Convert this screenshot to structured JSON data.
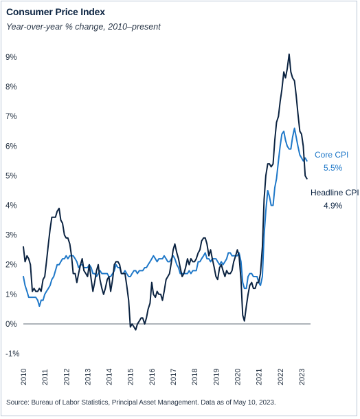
{
  "title": "Consumer Price Index",
  "subtitle": "Year-over-year % change, 2010–present",
  "source": "Source: Bureau of Labor Statistics, Principal Asset Management. Data as of May 10, 2023.",
  "colors": {
    "headline": "#0b2341",
    "core": "#1f78c8",
    "zero_line": "#5a6470"
  },
  "chart_data": {
    "type": "line",
    "title": "Consumer Price Index",
    "subtitle": "Year-over-year % change, 2010–present",
    "xlabel": "",
    "ylabel": "",
    "ylim": [
      -1,
      9
    ],
    "xlim": [
      2010,
      2023.42
    ],
    "yticks": [
      "-1%",
      "0%",
      "1%",
      "2%",
      "3%",
      "4%",
      "5%",
      "6%",
      "7%",
      "8%",
      "9%"
    ],
    "yticks_values": [
      -1,
      0,
      1,
      2,
      3,
      4,
      5,
      6,
      7,
      8,
      9
    ],
    "xticks": [
      "2010",
      "2011",
      "2012",
      "2013",
      "2014",
      "2015",
      "2016",
      "2017",
      "2018",
      "2019",
      "2020",
      "2021",
      "2022",
      "2023"
    ],
    "xticks_values": [
      2010,
      2011,
      2012,
      2013,
      2014,
      2015,
      2016,
      2017,
      2018,
      2019,
      2020,
      2021,
      2022,
      2023
    ],
    "grid": false,
    "series": [
      {
        "name": "Headline CPI",
        "last_label": "4.9%",
        "x": [
          2010.0,
          2010.08,
          2010.17,
          2010.25,
          2010.33,
          2010.42,
          2010.5,
          2010.58,
          2010.67,
          2010.75,
          2010.83,
          2010.92,
          2011.0,
          2011.08,
          2011.17,
          2011.25,
          2011.33,
          2011.42,
          2011.5,
          2011.58,
          2011.67,
          2011.75,
          2011.83,
          2011.92,
          2012.0,
          2012.08,
          2012.17,
          2012.25,
          2012.33,
          2012.42,
          2012.5,
          2012.58,
          2012.67,
          2012.75,
          2012.83,
          2012.92,
          2013.0,
          2013.08,
          2013.17,
          2013.25,
          2013.33,
          2013.42,
          2013.5,
          2013.58,
          2013.67,
          2013.75,
          2013.83,
          2013.92,
          2014.0,
          2014.08,
          2014.17,
          2014.25,
          2014.33,
          2014.42,
          2014.5,
          2014.58,
          2014.67,
          2014.75,
          2014.83,
          2014.92,
          2015.0,
          2015.08,
          2015.17,
          2015.25,
          2015.33,
          2015.42,
          2015.5,
          2015.58,
          2015.67,
          2015.75,
          2015.83,
          2015.92,
          2016.0,
          2016.08,
          2016.17,
          2016.25,
          2016.33,
          2016.42,
          2016.5,
          2016.58,
          2016.67,
          2016.75,
          2016.83,
          2016.92,
          2017.0,
          2017.08,
          2017.17,
          2017.25,
          2017.33,
          2017.42,
          2017.5,
          2017.58,
          2017.67,
          2017.75,
          2017.83,
          2017.92,
          2018.0,
          2018.08,
          2018.17,
          2018.25,
          2018.33,
          2018.42,
          2018.5,
          2018.58,
          2018.67,
          2018.75,
          2018.83,
          2018.92,
          2019.0,
          2019.08,
          2019.17,
          2019.25,
          2019.33,
          2019.42,
          2019.5,
          2019.58,
          2019.67,
          2019.75,
          2019.83,
          2019.92,
          2020.0,
          2020.08,
          2020.17,
          2020.25,
          2020.33,
          2020.42,
          2020.5,
          2020.58,
          2020.67,
          2020.75,
          2020.83,
          2020.92,
          2021.0,
          2021.08,
          2021.17,
          2021.25,
          2021.33,
          2021.42,
          2021.5,
          2021.58,
          2021.67,
          2021.75,
          2021.83,
          2021.92,
          2022.0,
          2022.08,
          2022.17,
          2022.25,
          2022.33,
          2022.42,
          2022.5,
          2022.58,
          2022.67,
          2022.75,
          2022.83,
          2022.92,
          2023.0,
          2023.08,
          2023.17,
          2023.25
        ],
        "values": [
          2.6,
          2.1,
          2.3,
          2.2,
          2.0,
          1.1,
          1.2,
          1.1,
          1.1,
          1.2,
          1.1,
          1.5,
          1.6,
          2.1,
          2.7,
          3.2,
          3.6,
          3.6,
          3.6,
          3.8,
          3.9,
          3.5,
          3.4,
          3.0,
          2.9,
          2.9,
          2.7,
          2.3,
          1.7,
          1.7,
          1.4,
          1.7,
          2.0,
          2.2,
          1.8,
          1.7,
          1.6,
          2.0,
          1.5,
          1.1,
          1.4,
          1.8,
          2.0,
          1.5,
          1.2,
          1.0,
          1.2,
          1.5,
          1.6,
          1.1,
          1.5,
          2.0,
          2.1,
          2.1,
          2.0,
          1.7,
          1.7,
          1.7,
          1.3,
          0.8,
          -0.1,
          0.0,
          -0.1,
          -0.2,
          0.0,
          0.1,
          0.2,
          0.2,
          0.0,
          0.2,
          0.5,
          0.7,
          1.4,
          1.0,
          0.9,
          1.1,
          1.0,
          1.0,
          0.8,
          1.1,
          1.5,
          1.6,
          1.7,
          2.1,
          2.5,
          2.7,
          2.4,
          2.2,
          1.9,
          1.6,
          1.7,
          1.9,
          2.2,
          2.0,
          2.2,
          2.1,
          2.1,
          2.2,
          2.4,
          2.5,
          2.8,
          2.9,
          2.9,
          2.7,
          2.3,
          2.5,
          2.2,
          1.9,
          1.6,
          1.5,
          1.9,
          2.0,
          1.8,
          1.6,
          1.8,
          1.7,
          1.7,
          1.8,
          2.1,
          2.3,
          2.5,
          2.3,
          1.5,
          0.3,
          0.1,
          0.6,
          1.0,
          1.3,
          1.4,
          1.2,
          1.2,
          1.4,
          1.4,
          1.7,
          2.6,
          4.2,
          5.0,
          5.4,
          5.4,
          5.3,
          5.4,
          6.2,
          6.8,
          7.0,
          7.5,
          7.9,
          8.5,
          8.3,
          8.6,
          9.1,
          8.5,
          8.3,
          8.2,
          7.7,
          7.1,
          6.5,
          6.4,
          6.0,
          5.0,
          4.9
        ]
      },
      {
        "name": "Core CPI",
        "last_label": "5.5%",
        "x": [
          2010.0,
          2010.08,
          2010.17,
          2010.25,
          2010.33,
          2010.42,
          2010.5,
          2010.58,
          2010.67,
          2010.75,
          2010.83,
          2010.92,
          2011.0,
          2011.08,
          2011.17,
          2011.25,
          2011.33,
          2011.42,
          2011.5,
          2011.58,
          2011.67,
          2011.75,
          2011.83,
          2011.92,
          2012.0,
          2012.08,
          2012.17,
          2012.25,
          2012.33,
          2012.42,
          2012.5,
          2012.58,
          2012.67,
          2012.75,
          2012.83,
          2012.92,
          2013.0,
          2013.08,
          2013.17,
          2013.25,
          2013.33,
          2013.42,
          2013.5,
          2013.58,
          2013.67,
          2013.75,
          2013.83,
          2013.92,
          2014.0,
          2014.08,
          2014.17,
          2014.25,
          2014.33,
          2014.42,
          2014.5,
          2014.58,
          2014.67,
          2014.75,
          2014.83,
          2014.92,
          2015.0,
          2015.08,
          2015.17,
          2015.25,
          2015.33,
          2015.42,
          2015.5,
          2015.58,
          2015.67,
          2015.75,
          2015.83,
          2015.92,
          2016.0,
          2016.08,
          2016.17,
          2016.25,
          2016.33,
          2016.42,
          2016.5,
          2016.58,
          2016.67,
          2016.75,
          2016.83,
          2016.92,
          2017.0,
          2017.08,
          2017.17,
          2017.25,
          2017.33,
          2017.42,
          2017.5,
          2017.58,
          2017.67,
          2017.75,
          2017.83,
          2017.92,
          2018.0,
          2018.08,
          2018.17,
          2018.25,
          2018.33,
          2018.42,
          2018.5,
          2018.58,
          2018.67,
          2018.75,
          2018.83,
          2018.92,
          2019.0,
          2019.08,
          2019.17,
          2019.25,
          2019.33,
          2019.42,
          2019.5,
          2019.58,
          2019.67,
          2019.75,
          2019.83,
          2019.92,
          2020.0,
          2020.08,
          2020.17,
          2020.25,
          2020.33,
          2020.42,
          2020.5,
          2020.58,
          2020.67,
          2020.75,
          2020.83,
          2020.92,
          2021.0,
          2021.08,
          2021.17,
          2021.25,
          2021.33,
          2021.42,
          2021.5,
          2021.58,
          2021.67,
          2021.75,
          2021.83,
          2021.92,
          2022.0,
          2022.08,
          2022.17,
          2022.25,
          2022.33,
          2022.42,
          2022.5,
          2022.58,
          2022.67,
          2022.75,
          2022.83,
          2022.92,
          2023.0,
          2023.08,
          2023.17,
          2023.25
        ],
        "values": [
          1.6,
          1.3,
          1.1,
          0.9,
          0.9,
          0.9,
          0.9,
          0.9,
          0.8,
          0.6,
          0.8,
          0.8,
          1.0,
          1.1,
          1.2,
          1.3,
          1.5,
          1.6,
          1.8,
          2.0,
          2.0,
          2.1,
          2.2,
          2.2,
          2.3,
          2.2,
          2.3,
          2.3,
          2.3,
          2.2,
          2.1,
          1.9,
          2.0,
          2.0,
          1.9,
          1.9,
          1.9,
          2.0,
          1.9,
          1.7,
          1.7,
          1.6,
          1.7,
          1.8,
          1.7,
          1.7,
          1.7,
          1.7,
          1.6,
          1.6,
          1.7,
          1.8,
          2.0,
          1.9,
          1.9,
          1.7,
          1.7,
          1.8,
          1.7,
          1.6,
          1.6,
          1.7,
          1.8,
          1.8,
          1.7,
          1.8,
          1.8,
          1.8,
          1.9,
          1.9,
          2.0,
          2.1,
          2.2,
          2.3,
          2.2,
          2.1,
          2.2,
          2.2,
          2.2,
          2.3,
          2.2,
          2.1,
          2.1,
          2.2,
          2.3,
          2.2,
          2.0,
          1.9,
          1.7,
          1.7,
          1.7,
          1.7,
          1.7,
          1.8,
          1.7,
          1.8,
          1.8,
          1.8,
          2.1,
          2.1,
          2.2,
          2.3,
          2.4,
          2.2,
          2.2,
          2.1,
          2.2,
          2.2,
          2.2,
          2.1,
          2.0,
          2.1,
          2.0,
          2.1,
          2.2,
          2.4,
          2.4,
          2.3,
          2.3,
          2.3,
          2.3,
          2.4,
          2.1,
          1.4,
          1.2,
          1.2,
          1.6,
          1.7,
          1.7,
          1.6,
          1.6,
          1.6,
          1.4,
          1.3,
          1.6,
          3.0,
          3.8,
          4.5,
          4.3,
          4.0,
          4.0,
          4.6,
          4.9,
          5.5,
          6.0,
          6.4,
          6.5,
          6.2,
          6.0,
          5.9,
          5.9,
          6.3,
          6.6,
          6.3,
          6.0,
          5.7,
          5.6,
          5.5,
          5.6,
          5.5
        ]
      }
    ]
  }
}
